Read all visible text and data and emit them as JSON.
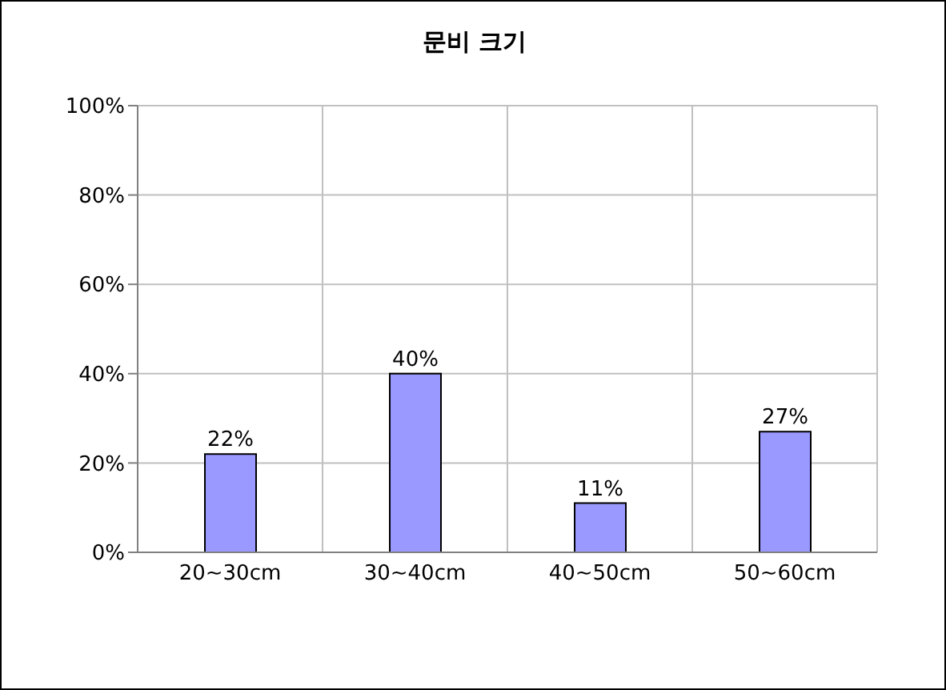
{
  "chart_data": {
    "type": "bar",
    "title": "문비 크기",
    "categories": [
      "20~30cm",
      "30~40cm",
      "40~50cm",
      "50~60cm"
    ],
    "values": [
      22,
      40,
      11,
      27
    ],
    "color": "#9999ff",
    "value_labels": [
      "22%",
      "40%",
      "11%",
      "27%"
    ],
    "ylim": [
      0,
      100
    ],
    "yticks": [
      {
        "value": 0,
        "label": "0%"
      },
      {
        "value": 20,
        "label": "20%"
      },
      {
        "value": 40,
        "label": "40%"
      },
      {
        "value": 60,
        "label": "60%"
      },
      {
        "value": 80,
        "label": "80%"
      },
      {
        "value": 100,
        "label": "100%"
      }
    ],
    "grid": true
  }
}
